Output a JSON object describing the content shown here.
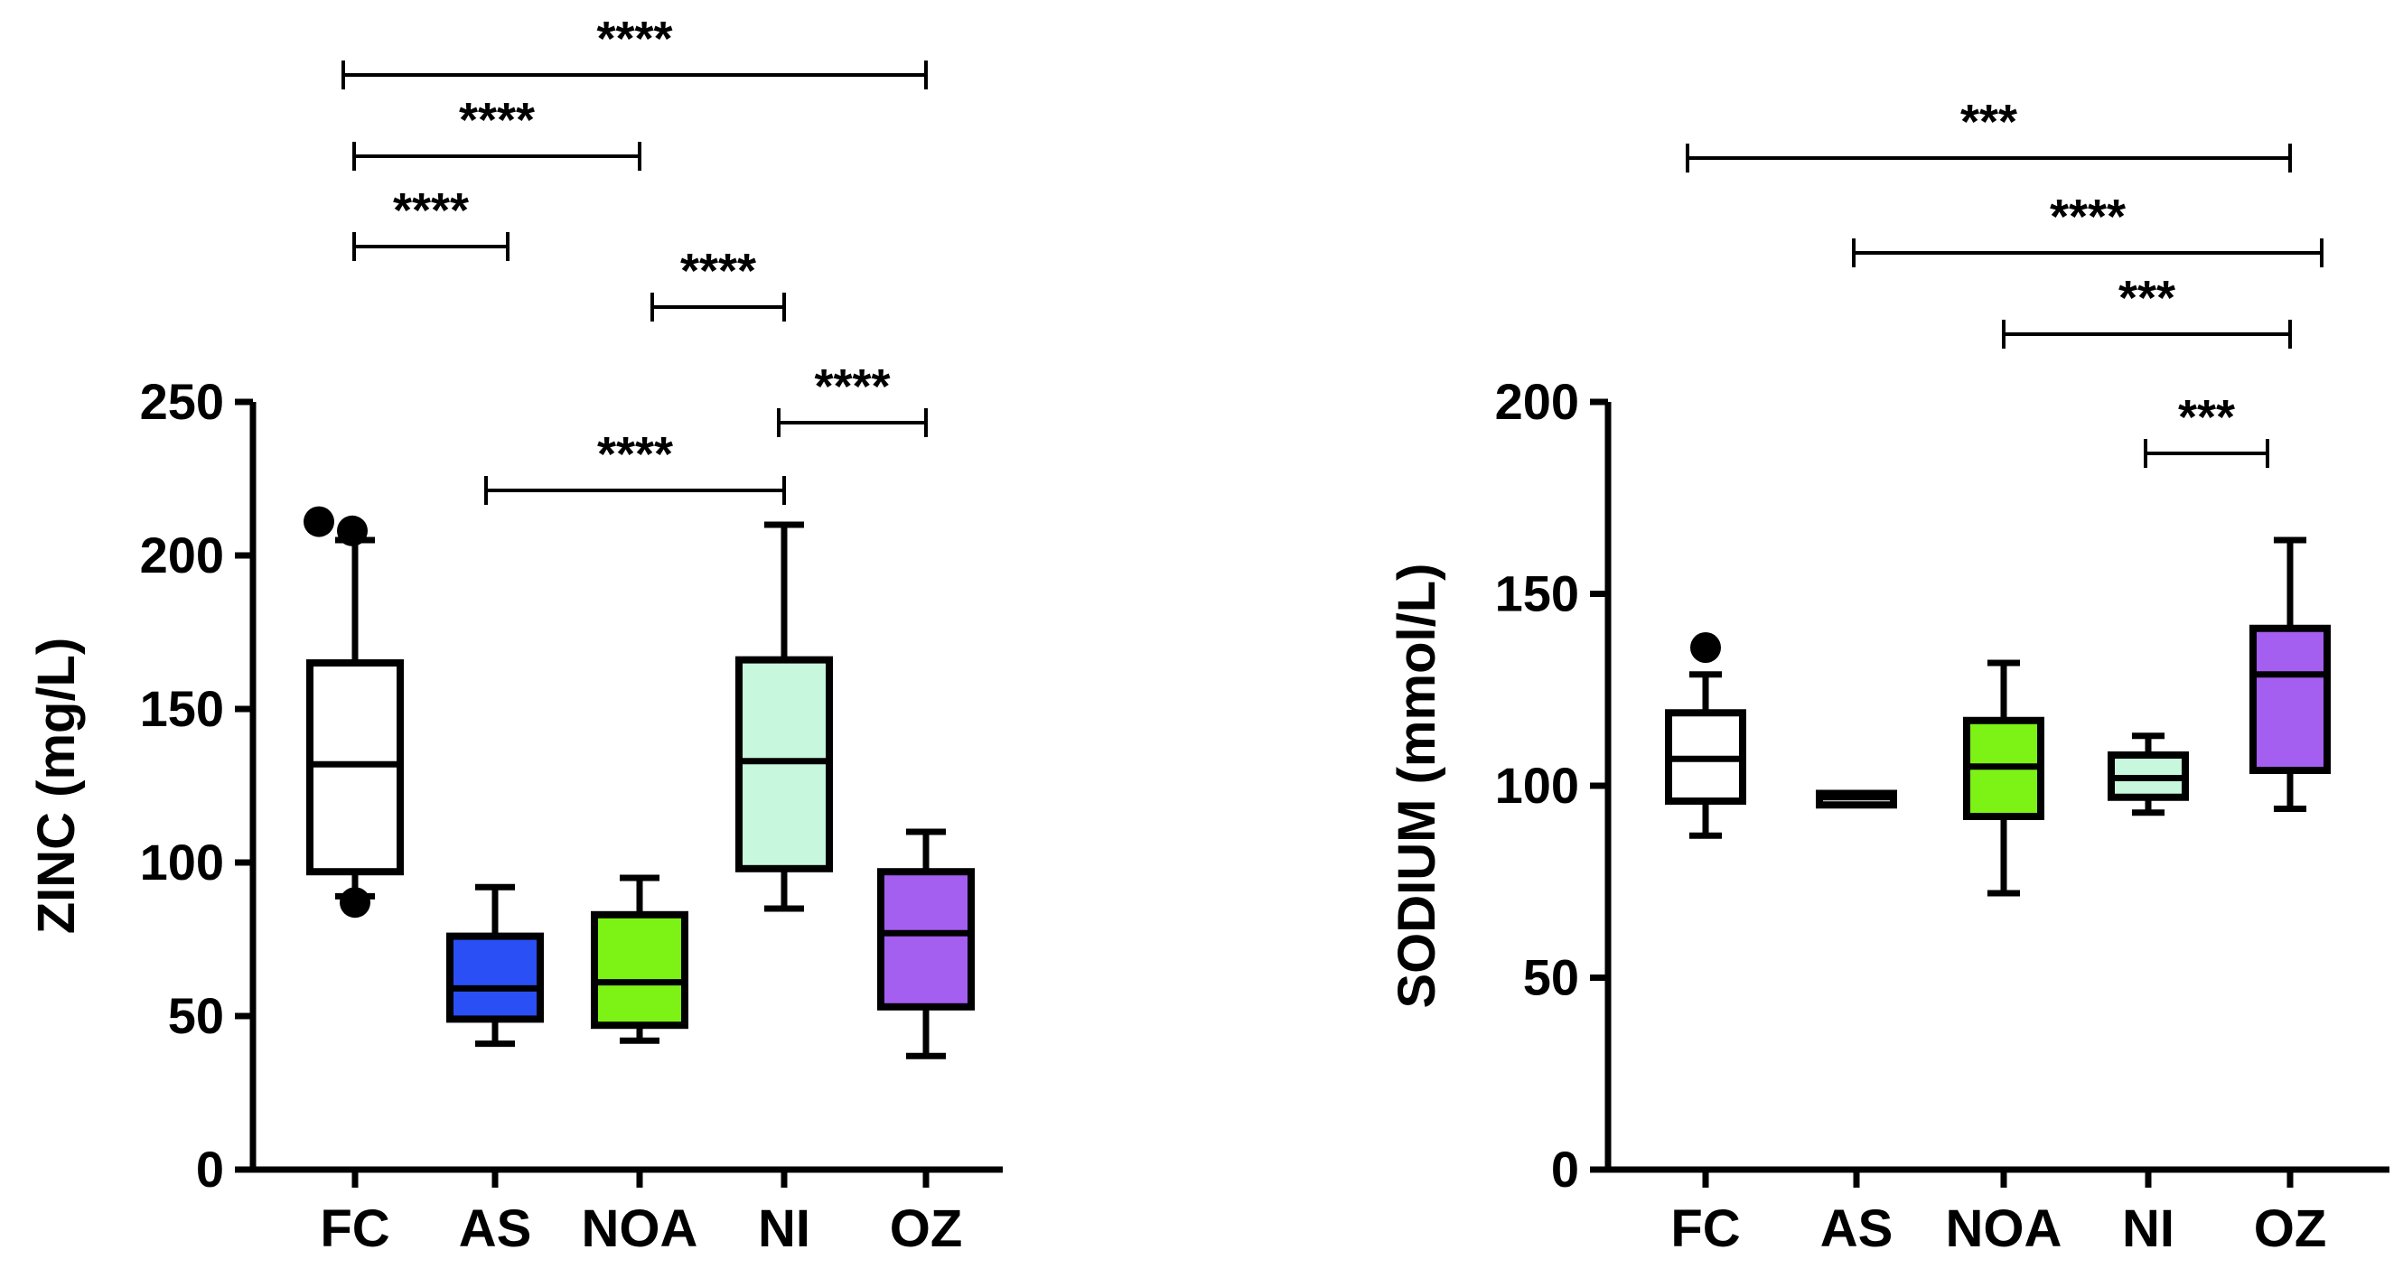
{
  "chart_data": [
    {
      "type": "box",
      "ylabel": "ZINC (mg/L)",
      "ylim": [
        0,
        250
      ],
      "yticks": [
        0,
        50,
        100,
        150,
        200,
        250
      ],
      "categories": [
        "FC",
        "AS",
        "NOA",
        "NI",
        "OZ"
      ],
      "colors": [
        "#ffffff",
        "#2a4ff5",
        "#7cf215",
        "#c7f7dc",
        "#a45ef0"
      ],
      "boxes": [
        {
          "category": "FC",
          "whisker_low": 89,
          "q1": 97,
          "median": 132,
          "q3": 165,
          "whisker_high": 205,
          "outliers": [
            87,
            208,
            211
          ]
        },
        {
          "category": "AS",
          "whisker_low": 41,
          "q1": 49,
          "median": 59,
          "q3": 76,
          "whisker_high": 92,
          "outliers": []
        },
        {
          "category": "NOA",
          "whisker_low": 42,
          "q1": 47,
          "median": 61,
          "q3": 83,
          "whisker_high": 95,
          "outliers": []
        },
        {
          "category": "NI",
          "whisker_low": 85,
          "q1": 98,
          "median": 133,
          "q3": 166,
          "whisker_high": 210,
          "outliers": []
        },
        {
          "category": "OZ",
          "whisker_low": 37,
          "q1": 53,
          "median": 77,
          "q3": 97,
          "whisker_high": 110,
          "outliers": []
        }
      ],
      "sig_brackets": [
        {
          "from": "FC",
          "to": "OZ",
          "label": "****"
        },
        {
          "from": "FC",
          "to": "NOA",
          "label": "****"
        },
        {
          "from": "FC",
          "to": "AS",
          "label": "****"
        },
        {
          "from": "NOA",
          "to": "NI",
          "label": "****"
        },
        {
          "from": "NI",
          "to": "OZ",
          "label": "****"
        },
        {
          "from": "AS",
          "to": "NI",
          "label": "****"
        }
      ]
    },
    {
      "type": "box",
      "ylabel": "SODIUM (mmol/L)",
      "ylim": [
        0,
        200
      ],
      "yticks": [
        0,
        50,
        100,
        150,
        200
      ],
      "categories": [
        "FC",
        "AS",
        "NOA",
        "NI",
        "OZ"
      ],
      "colors": [
        "#ffffff",
        "#ffffff",
        "#7cf215",
        "#c7f7dc",
        "#a45ef0"
      ],
      "boxes": [
        {
          "category": "FC",
          "whisker_low": 87,
          "q1": 96,
          "median": 107,
          "q3": 119,
          "whisker_high": 129,
          "outliers": [
            136
          ]
        },
        {
          "category": "AS",
          "whisker_low": 95,
          "q1": 95,
          "median": 97,
          "q3": 98,
          "whisker_high": 98,
          "outliers": []
        },
        {
          "category": "NOA",
          "whisker_low": 72,
          "q1": 92,
          "median": 105,
          "q3": 117,
          "whisker_high": 132,
          "outliers": []
        },
        {
          "category": "NI",
          "whisker_low": 93,
          "q1": 97,
          "median": 102,
          "q3": 108,
          "whisker_high": 113,
          "outliers": []
        },
        {
          "category": "OZ",
          "whisker_low": 94,
          "q1": 104,
          "median": 129,
          "q3": 141,
          "whisker_high": 164,
          "outliers": []
        }
      ],
      "sig_brackets": [
        {
          "from": "FC",
          "to": "OZ",
          "label": "***"
        },
        {
          "from": "AS",
          "to": "OZ",
          "label": "****"
        },
        {
          "from": "NOA",
          "to": "OZ",
          "label": "***"
        },
        {
          "from": "NI",
          "to": "OZ",
          "label": "***"
        }
      ]
    }
  ]
}
